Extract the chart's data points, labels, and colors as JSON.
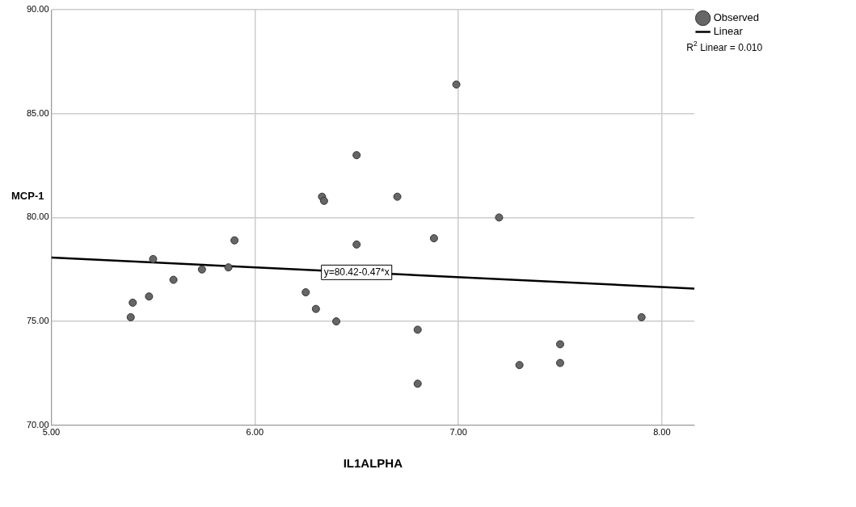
{
  "chart_data": {
    "type": "scatter",
    "xlabel": "IL1ALPHA",
    "ylabel": "MCP-1",
    "xlim": [
      5,
      8.16
    ],
    "ylim": [
      70,
      90
    ],
    "xticks": [
      {
        "value": 5,
        "label": "5.00"
      },
      {
        "value": 6,
        "label": "6.00"
      },
      {
        "value": 7,
        "label": "7.00"
      },
      {
        "value": 8,
        "label": "8.00"
      }
    ],
    "yticks": [
      {
        "value": 70,
        "label": "70.00"
      },
      {
        "value": 75,
        "label": "75.00"
      },
      {
        "value": 80,
        "label": "80.00"
      },
      {
        "value": 85,
        "label": "85.00"
      },
      {
        "value": 90,
        "label": "90.00"
      }
    ],
    "grid": true,
    "legend": "top right",
    "series": [
      {
        "name": "Observed",
        "marker": "circle",
        "color": "#666666",
        "x": [
          6.5,
          6.33,
          6.34,
          6.5,
          5.9,
          5.5,
          5.74,
          5.87,
          5.6,
          5.48,
          5.4,
          5.39,
          6.25,
          6.3,
          6.4,
          6.99,
          6.7,
          6.88,
          7.2,
          6.8,
          6.8,
          7.3,
          7.5,
          7.5,
          7.9
        ],
        "values": [
          83.0,
          81.0,
          80.8,
          78.7,
          78.9,
          78.0,
          77.5,
          77.6,
          77.0,
          76.2,
          75.9,
          75.2,
          76.4,
          75.6,
          75.0,
          86.4,
          81.0,
          79.0,
          80.0,
          74.6,
          72.0,
          72.9,
          73.9,
          73.0,
          75.2
        ]
      },
      {
        "name": "Linear",
        "type": "line",
        "color": "#000000",
        "line_style": "solid",
        "x": [
          5,
          8.16
        ],
        "values": [
          78.07,
          76.58
        ]
      }
    ],
    "annotations": [
      {
        "text": "y=80.42-0.47*x",
        "x": 6.5,
        "y": 77.36
      },
      "R$^{2}$ Linear = 0.010"
    ]
  }
}
